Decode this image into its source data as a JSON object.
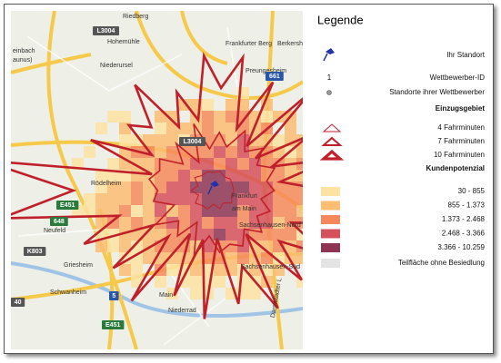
{
  "legend": {
    "title": "Legende",
    "own_location": "Ihr Standort",
    "competitor_id_symbol": "1",
    "competitor_id": "Wettbewerber-ID",
    "competitor_sites": "Standorte ihrer Wettbewerber",
    "catchment": {
      "title": "Einzugsgebiet",
      "items": [
        "4 Fahrminuten",
        "7 Fahrminuten",
        "10 Fahrminuten"
      ]
    },
    "potential": {
      "title": "Kundenpotenzial",
      "classes": [
        {
          "label": "30 - 855",
          "color": "#fde3a2"
        },
        {
          "label": "855 - 1.373",
          "color": "#fbbd72"
        },
        {
          "label": "1.373 - 2.468",
          "color": "#f5895b"
        },
        {
          "label": "2.468 - 3.366",
          "color": "#d6505b"
        },
        {
          "label": "3.366 - 10.259",
          "color": "#8e3452"
        }
      ],
      "unsettled": {
        "label": "Teilfläche ohne Besiedlung",
        "color": "#e4e4e4"
      }
    }
  },
  "map_labels": [
    "Riedberg",
    "Hohemühle",
    "Niederursel",
    "Frankfurter Berg",
    "Berkersh",
    "einbach",
    "aunus)",
    "Preungesheim",
    "Rödelheim",
    "Frankfurt",
    "am Main",
    "Neufeld",
    "Griesheim",
    "Main",
    "Niederrad",
    "Sachsenhausen-Nord",
    "Sachsenhausen-Süd",
    "Schwanheim",
    "Darmstädter L"
  ],
  "road_signs": [
    "L3004",
    "661",
    "L3004",
    "E451",
    "648",
    "K803",
    "5",
    "40",
    "E451"
  ]
}
